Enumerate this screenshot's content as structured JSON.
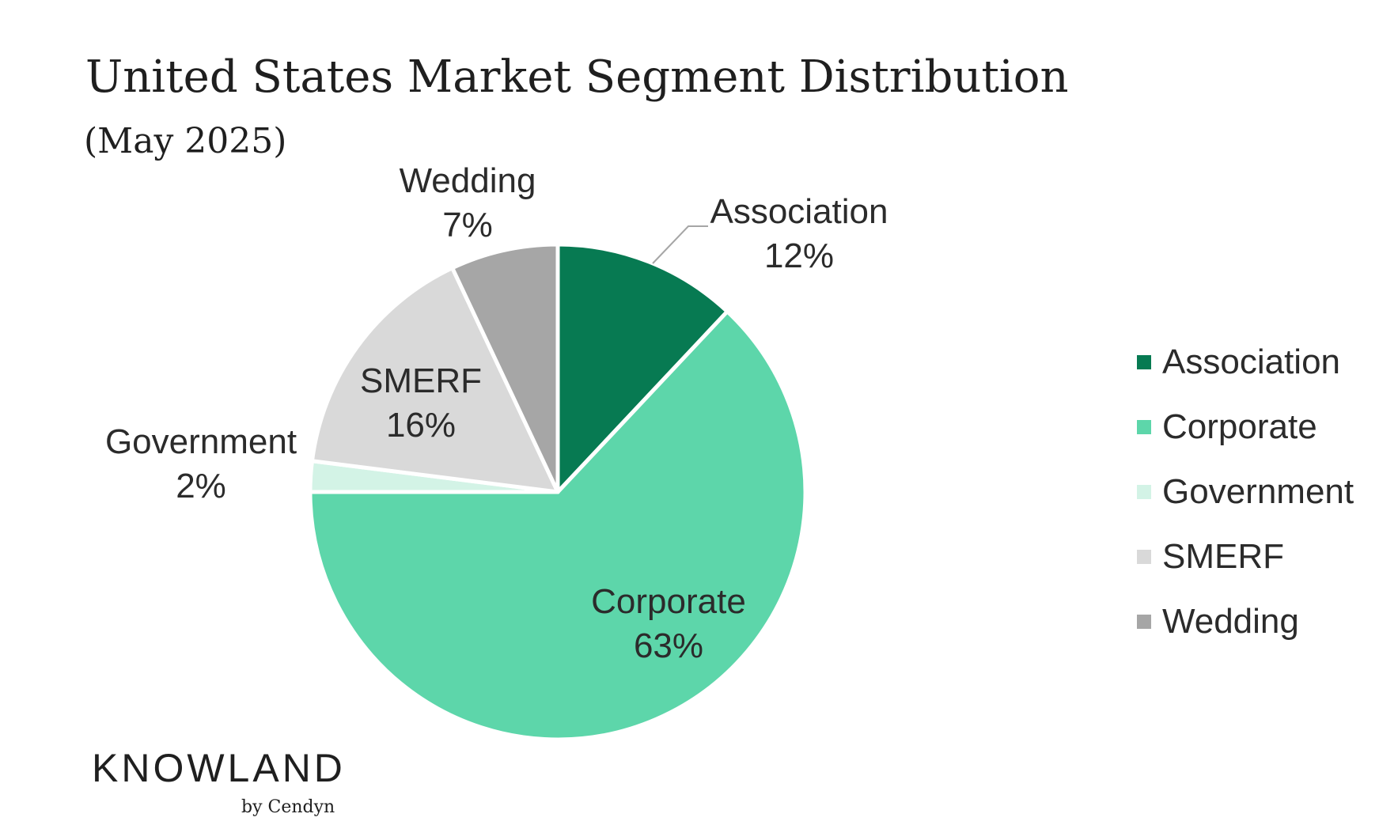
{
  "chart_data": {
    "type": "pie",
    "title": "United States Market Segment Distribution",
    "subtitle": "(May 2025)",
    "legend_position": "right",
    "categories": [
      "Association",
      "Corporate",
      "Government",
      "SMERF",
      "Wedding"
    ],
    "values": [
      12,
      63,
      2,
      16,
      7
    ],
    "value_labels": [
      "12%",
      "63%",
      "2%",
      "16%",
      "7%"
    ],
    "colors": [
      "#077a52",
      "#5dd6aa",
      "#d3f3e6",
      "#d9d9d9",
      "#a6a6a6"
    ]
  },
  "branding": {
    "name": "KNOWLAND",
    "sub": "by Cendyn"
  }
}
